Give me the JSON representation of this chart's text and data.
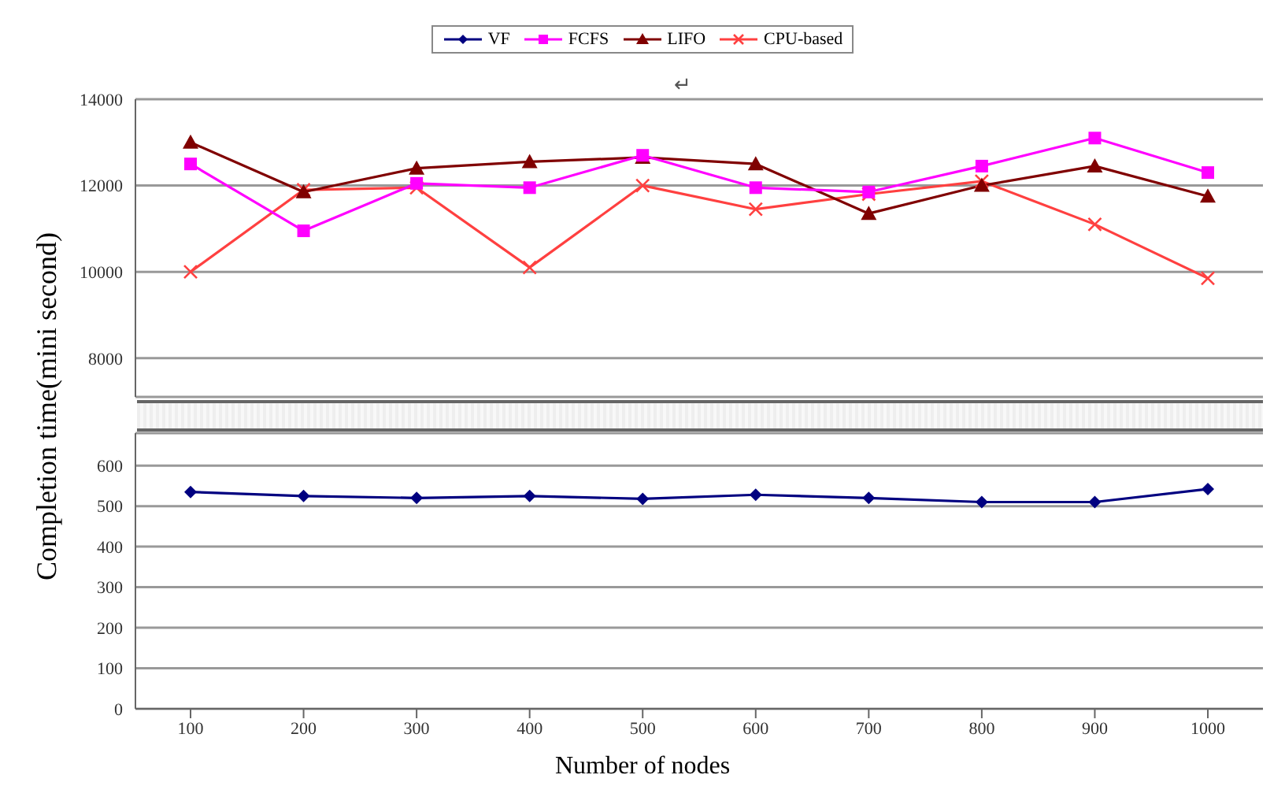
{
  "chart_data": [
    {
      "type": "line",
      "ylabel": "Completion time(mini second)",
      "annotations": [
        "↵"
      ],
      "categories": [
        "100",
        "200",
        "300",
        "400",
        "500",
        "600",
        "700",
        "800",
        "900",
        "1000"
      ],
      "ylim": [
        7100,
        14000
      ],
      "yticks": [
        8000,
        10000,
        12000,
        14000
      ],
      "grid": "y",
      "legend": "top",
      "tick_labels": "y",
      "series": [
        {
          "name": "FCFS",
          "color": "#ff00ff",
          "marker": "square",
          "values": [
            12500,
            10950,
            12050,
            11950,
            12700,
            11950,
            11850,
            12450,
            13100,
            12300
          ]
        },
        {
          "name": "LIFO",
          "color": "#800000",
          "marker": "triangle",
          "values": [
            13000,
            11850,
            12400,
            12550,
            12650,
            12500,
            11350,
            12000,
            12450,
            11750
          ]
        },
        {
          "name": "CPU-based",
          "color": "#ff4040",
          "marker": "cross",
          "values": [
            10000,
            11900,
            11950,
            10100,
            12000,
            11450,
            11800,
            12100,
            11100,
            9850
          ]
        }
      ]
    },
    {
      "type": "line",
      "xlabel": "Number of nodes",
      "categories": [
        "100",
        "200",
        "300",
        "400",
        "500",
        "600",
        "700",
        "800",
        "900",
        "1000"
      ],
      "ylim": [
        0,
        680
      ],
      "yticks": [
        0,
        100,
        200,
        300,
        400,
        500,
        600
      ],
      "grid": "y",
      "legend": "top",
      "series": [
        {
          "name": "VF",
          "color": "#000080",
          "marker": "diamond",
          "values": [
            535,
            525,
            520,
            525,
            518,
            528,
            520,
            510,
            510,
            542
          ]
        }
      ]
    }
  ]
}
